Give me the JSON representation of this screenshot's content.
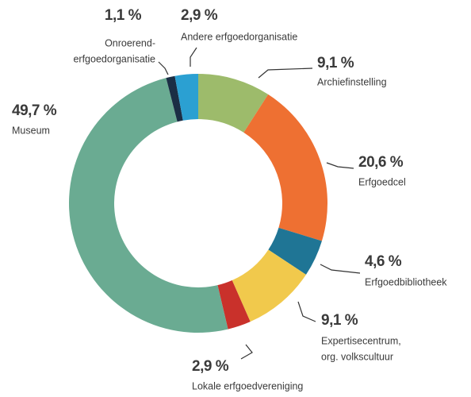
{
  "chart_data": {
    "type": "donut",
    "categories": [
      [
        "Archiefinstelling"
      ],
      [
        "Erfgoedcel"
      ],
      [
        "Erfgoedbibliotheek"
      ],
      [
        "Expertisecentrum,",
        "org. volkscultuur"
      ],
      [
        "Lokale erfgoedvereniging"
      ],
      [
        "Museum"
      ],
      [
        "Onroerend-",
        "erfgoedorganisatie"
      ],
      [
        "Andere erfgoedorganisatie"
      ]
    ],
    "values": [
      9.1,
      20.6,
      4.6,
      9.1,
      2.9,
      49.7,
      1.1,
      2.9
    ],
    "value_labels": [
      "9,1 %",
      "20,6 %",
      "4,6 %",
      "9,1 %",
      "2,9 %",
      "49,7 %",
      "1,1 %",
      "2,9 %"
    ],
    "colors": [
      "#9dbb6b",
      "#ee7032",
      "#1f7595",
      "#f1c94c",
      "#c9312b",
      "#6aab92",
      "#1b2e45",
      "#2ba0d2"
    ]
  }
}
